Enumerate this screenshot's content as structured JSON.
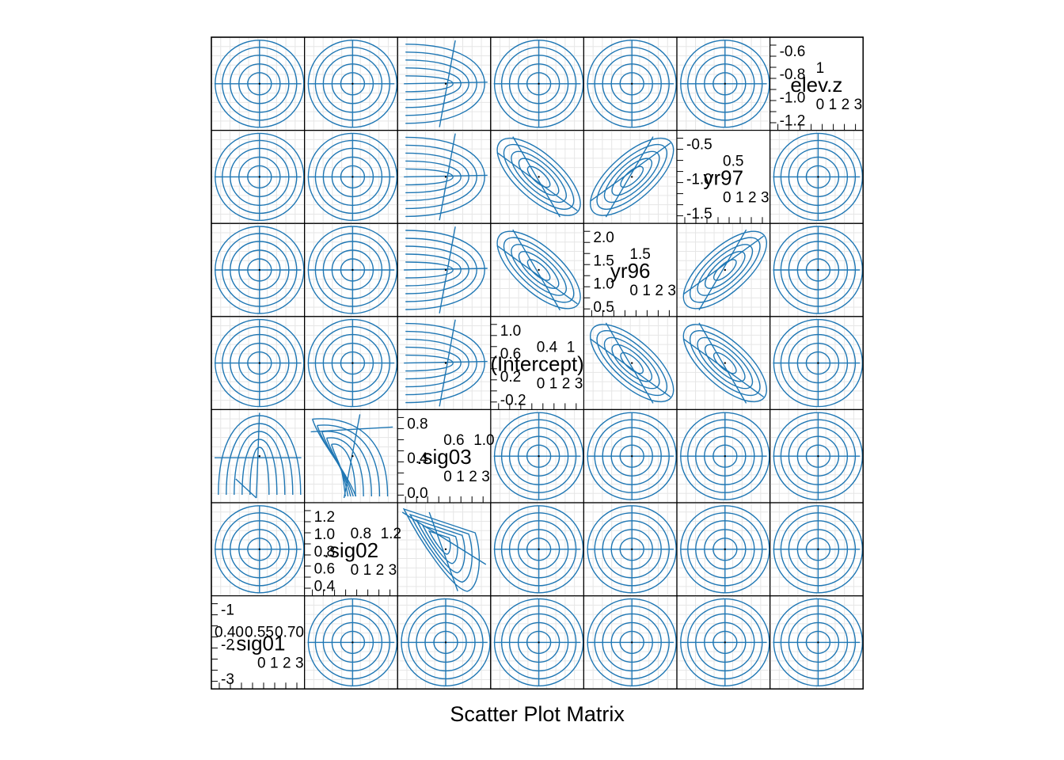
{
  "chart_data": {
    "type": "splom",
    "title": "",
    "xlabel": "Scatter Plot Matrix",
    "ylabel": "",
    "variables": [
      ".sig01",
      ".sig02",
      ".sig03",
      "(Intercept)",
      "yr96",
      "yr97",
      "elev.z"
    ],
    "contour_color": "#1f77b4",
    "grid": true,
    "diagonal_panels": [
      {
        "name": ".sig01",
        "label": ".sig01",
        "ticks_top": [
          "0.40",
          "0.55",
          "0.70"
        ],
        "ticks_small": [
          "0",
          "1",
          "2",
          "3"
        ],
        "ticks_left": [
          "-1",
          "-2",
          "-3"
        ]
      },
      {
        "name": ".sig02",
        "label": ".sig02",
        "ticks_left": [
          "1.2",
          "1.0",
          "0.8",
          "0.6",
          "0.4"
        ],
        "ticks_small": [
          "0",
          "1",
          "2",
          "3"
        ],
        "ticks_right": [
          "0.8",
          "1.2"
        ]
      },
      {
        "name": ".sig03",
        "label": ".sig03",
        "ticks_left": [
          "0.8",
          "0.4",
          "0.0"
        ],
        "ticks_small": [
          "0",
          "1",
          "2",
          "3"
        ],
        "ticks_right": [
          "0.6",
          "1.0"
        ]
      },
      {
        "name": "(Intercept)",
        "label": "(Intercept)",
        "ticks_left": [
          "1.0",
          "0.6",
          "0.2",
          "-0.2"
        ],
        "ticks_small": [
          "0",
          "1",
          "2",
          "3"
        ],
        "ticks_right": [
          "0.4",
          "1"
        ]
      },
      {
        "name": "yr96",
        "label": "yr96",
        "ticks_left": [
          "2.0",
          "1.5",
          "1.0",
          "0.5"
        ],
        "ticks_small": [
          "0",
          "1",
          "2",
          "3"
        ],
        "ticks_right": [
          "1.5"
        ]
      },
      {
        "name": "yr97",
        "label": "yr97",
        "ticks_left": [
          "-0.5",
          "-1.0",
          "-1.5"
        ],
        "ticks_small": [
          "0",
          "1",
          "2",
          "3"
        ],
        "ticks_right": [
          "0.5"
        ]
      },
      {
        "name": "elev.z",
        "label": "elev.z",
        "ticks_left": [
          "-0.6",
          "-0.8",
          "-1.0",
          "-1.2"
        ],
        "ticks_small": [
          "0",
          "1",
          "2",
          "3"
        ],
        "ticks_right": [
          "1"
        ]
      }
    ],
    "panels": [
      {
        "row": "elev.z",
        "col": ".sig01",
        "shape": "round"
      },
      {
        "row": "elev.z",
        "col": ".sig02",
        "shape": "round"
      },
      {
        "row": "elev.z",
        "col": ".sig03",
        "shape": "open-right"
      },
      {
        "row": "elev.z",
        "col": "(Intercept)",
        "shape": "round"
      },
      {
        "row": "elev.z",
        "col": "yr96",
        "shape": "round"
      },
      {
        "row": "elev.z",
        "col": "yr97",
        "shape": "round"
      },
      {
        "row": "yr97",
        "col": ".sig01",
        "shape": "round"
      },
      {
        "row": "yr97",
        "col": ".sig02",
        "shape": "round"
      },
      {
        "row": "yr97",
        "col": ".sig03",
        "shape": "open-right"
      },
      {
        "row": "yr97",
        "col": "(Intercept)",
        "shape": "tilt-negative"
      },
      {
        "row": "yr97",
        "col": "yr96",
        "shape": "tilt-positive"
      },
      {
        "row": "yr97",
        "col": "elev.z",
        "shape": "round"
      },
      {
        "row": "yr96",
        "col": ".sig01",
        "shape": "round"
      },
      {
        "row": "yr96",
        "col": ".sig02",
        "shape": "round"
      },
      {
        "row": "yr96",
        "col": ".sig03",
        "shape": "open-right"
      },
      {
        "row": "yr96",
        "col": "(Intercept)",
        "shape": "tilt-negative"
      },
      {
        "row": "yr96",
        "col": "yr97",
        "shape": "tilt-positive"
      },
      {
        "row": "yr96",
        "col": "elev.z",
        "shape": "round"
      },
      {
        "row": "(Intercept)",
        "col": ".sig01",
        "shape": "round"
      },
      {
        "row": "(Intercept)",
        "col": ".sig02",
        "shape": "round"
      },
      {
        "row": "(Intercept)",
        "col": ".sig03",
        "shape": "open-right"
      },
      {
        "row": "(Intercept)",
        "col": "yr96",
        "shape": "tilt-negative"
      },
      {
        "row": "(Intercept)",
        "col": "yr97",
        "shape": "tilt-negative"
      },
      {
        "row": "(Intercept)",
        "col": "elev.z",
        "shape": "round"
      },
      {
        "row": ".sig03",
        "col": ".sig01",
        "shape": "open-bottom"
      },
      {
        "row": ".sig03",
        "col": ".sig02",
        "shape": "skewed-down"
      },
      {
        "row": ".sig03",
        "col": "(Intercept)",
        "shape": "round"
      },
      {
        "row": ".sig03",
        "col": "yr96",
        "shape": "round"
      },
      {
        "row": ".sig03",
        "col": "yr97",
        "shape": "round"
      },
      {
        "row": ".sig03",
        "col": "elev.z",
        "shape": "round"
      },
      {
        "row": ".sig02",
        "col": ".sig01",
        "shape": "round"
      },
      {
        "row": ".sig02",
        "col": ".sig03",
        "shape": "triangle"
      },
      {
        "row": ".sig02",
        "col": "(Intercept)",
        "shape": "round"
      },
      {
        "row": ".sig02",
        "col": "yr96",
        "shape": "round"
      },
      {
        "row": ".sig02",
        "col": "yr97",
        "shape": "round"
      },
      {
        "row": ".sig02",
        "col": "elev.z",
        "shape": "round"
      },
      {
        "row": ".sig01",
        "col": ".sig02",
        "shape": "round"
      },
      {
        "row": ".sig01",
        "col": ".sig03",
        "shape": "round"
      },
      {
        "row": ".sig01",
        "col": "(Intercept)",
        "shape": "round"
      },
      {
        "row": ".sig01",
        "col": "yr96",
        "shape": "round"
      },
      {
        "row": ".sig01",
        "col": "yr97",
        "shape": "round"
      },
      {
        "row": ".sig01",
        "col": "elev.z",
        "shape": "round"
      }
    ]
  }
}
